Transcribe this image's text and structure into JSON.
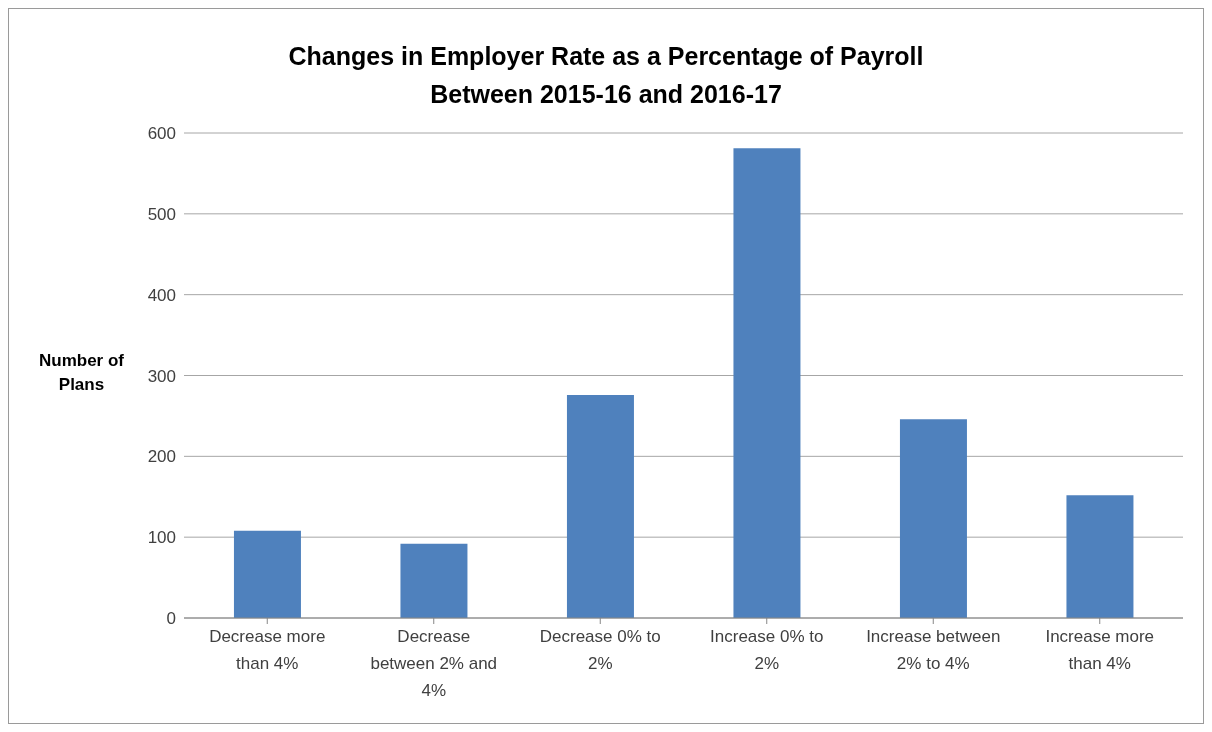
{
  "chart_data": {
    "type": "bar",
    "title": "Changes in Employer Rate as a Percentage of Payroll\nBetween 2015-16 and 2016-17",
    "ylabel": "Number of Plans",
    "categories": [
      "Decrease more than 4%",
      "Decrease between 2% and 4%",
      "Decrease 0% to 2%",
      "Increase 0% to 2%",
      "Increase between 2% to 4%",
      "Increase more than 4%"
    ],
    "values": [
      108,
      92,
      276,
      581,
      246,
      152
    ],
    "color": "#4f81bd",
    "ylim": [
      0,
      600
    ],
    "yticks": [
      0,
      100,
      200,
      300,
      400,
      500,
      600
    ],
    "grid": "y"
  }
}
